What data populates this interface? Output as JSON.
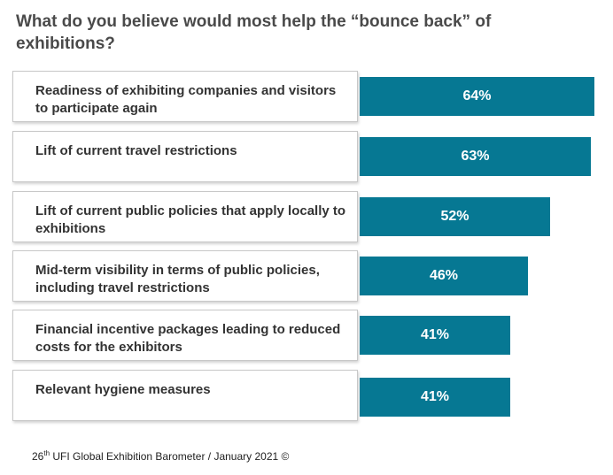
{
  "chart_data": {
    "type": "bar",
    "orientation": "horizontal",
    "title": "What do you believe would most help the “bounce back” of exhibitions?",
    "categories": [
      "Readiness of exhibiting companies and visitors to participate again",
      "Lift of current travel restrictions",
      "Lift of current public policies that apply locally to exhibitions",
      "Mid-term visibility in terms of public policies, including travel restrictions",
      "Financial incentive packages leading to reduced costs for the exhibitors",
      "Relevant hygiene measures"
    ],
    "values": [
      64,
      63,
      52,
      46,
      41,
      41
    ],
    "value_labels": [
      "64%",
      "63%",
      "52%",
      "46%",
      "41%",
      "41%"
    ],
    "unit": "%",
    "xlim": [
      0,
      64
    ],
    "bar_color": "#067893",
    "grid": false,
    "legend": "none"
  },
  "source": {
    "prefix": "26",
    "superscript": "th",
    "text": " UFI Global Exhibition Barometer / January 2021 ©"
  }
}
